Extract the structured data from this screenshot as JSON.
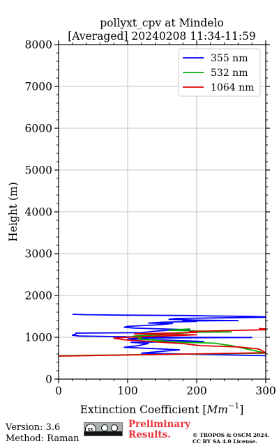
{
  "chart_data": {
    "type": "line",
    "title": "pollyxt_cpv at Mindelo",
    "subtitle": "[Averaged] 20240208 11:34-11:59",
    "xlabel": "Extinction Coefficient [",
    "xlabel_unit": "Mm",
    "xlabel_exp": "−1",
    "xlabel_end": "]",
    "ylabel": "Height (m)",
    "xlim": [
      0,
      300
    ],
    "ylim": [
      0,
      8000
    ],
    "x_ticks": [
      0,
      100,
      200,
      300
    ],
    "y_ticks": [
      0,
      1000,
      2000,
      3000,
      4000,
      5000,
      6000,
      7000,
      8000
    ],
    "grid": true,
    "legend_position": "top-right",
    "series": [
      {
        "name": "355 nm",
        "color": "#0000ff",
        "x": [
          300,
          205,
          120,
          140,
          175,
          150,
          95,
          115,
          130,
          105,
          210,
          160,
          100,
          115,
          170,
          210,
          280,
          160,
          110,
          30,
          20,
          25,
          25,
          120,
          135,
          160,
          190,
          150,
          110,
          95,
          100,
          145,
          165,
          130,
          150,
          200,
          180,
          260,
          200,
          160,
          170,
          215,
          255,
          300,
          300,
          280,
          220,
          190,
          90,
          40,
          20
        ],
        "y": [
          430,
          480,
          520,
          580,
          610,
          640,
          680,
          700,
          730,
          760,
          800,
          840,
          880,
          900,
          950,
          980,
          990,
          1000,
          1010,
          1020,
          1040,
          1060,
          1080,
          1100,
          1120,
          1140,
          1160,
          1180,
          1200,
          1220,
          1240,
          1260,
          1280,
          1300,
          1340,
          1380,
          1400,
          1420,
          1440,
          1460,
          1480,
          1500,
          1520,
          1540,
          1560,
          1580,
          1600,
          1620,
          1650,
          1680,
          1700
        ],
        "display_y": [
          560,
          590,
          620,
          650,
          700,
          720,
          760,
          800,
          850,
          880,
          900,
          930,
          960,
          980,
          985,
          990,
          995,
          1000,
          1010,
          1030,
          1050,
          1080,
          1100,
          1110,
          1140,
          1170,
          1180,
          1200,
          1220,
          1240,
          1260,
          1300,
          1330,
          1340,
          1360,
          1380,
          1390,
          1400,
          1410,
          1430,
          1450,
          1460,
          1470,
          1480,
          1490,
          1500,
          1510,
          1520,
          1530,
          1540,
          1550
        ]
      },
      {
        "name": "532 nm",
        "color": "#00b000",
        "x": [
          0,
          300,
          250,
          225,
          180,
          160,
          140,
          115,
          120,
          105,
          110,
          150,
          170,
          195,
          250,
          200,
          160,
          190
        ],
        "y": [
          560,
          620,
          800,
          860,
          880,
          900,
          930,
          960,
          990,
          1010,
          1030,
          1060,
          1090,
          1120,
          1130,
          1150,
          1170,
          1200
        ]
      },
      {
        "name": "1064 nm",
        "color": "#e00000",
        "x": [
          0,
          300,
          290,
          260,
          205,
          195,
          180,
          150,
          135,
          95,
          80,
          100,
          150,
          200,
          110,
          160,
          200,
          190,
          245,
          300,
          300,
          290
        ],
        "y": [
          550,
          630,
          720,
          770,
          800,
          820,
          850,
          880,
          900,
          940,
          980,
          1000,
          1030,
          1060,
          1080,
          1100,
          1120,
          1140,
          1160,
          1180,
          1200,
          1210
        ]
      }
    ]
  },
  "footer": {
    "version": "Version: 3.6",
    "method": "Method: Raman",
    "preliminary_line1": "Preliminary",
    "preliminary_line2": "Results.",
    "copyright_line1": "© TROPOS & OSCM 2024.",
    "copyright_line2": "CC BY SA 4.0 License.",
    "license_badge": "cc-by-sa-icon"
  }
}
